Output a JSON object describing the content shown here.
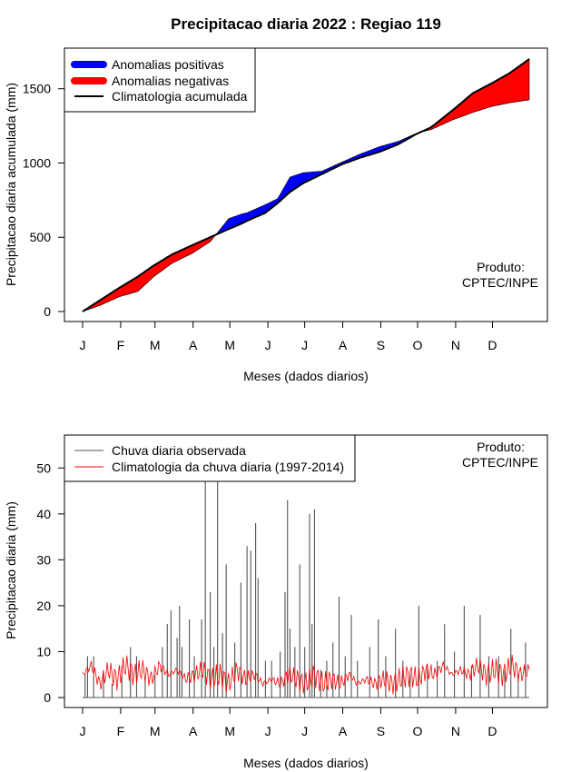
{
  "page_title": "Precipitacao diaria 2022 : Regiao 119",
  "months": [
    "J",
    "F",
    "M",
    "A",
    "M",
    "J",
    "J",
    "A",
    "S",
    "O",
    "N",
    "D"
  ],
  "colors": {
    "positive": "#0000ff",
    "negative": "#ff0000",
    "observed": "#555555",
    "climatology_daily": "#ff0000",
    "axis": "#000000"
  },
  "chart_data": [
    {
      "type": "area",
      "title": "Precipitacao diaria 2022 : Regiao 119",
      "xlabel": "Meses (dados diarios)",
      "ylabel": "Precipitacao diaria acumulada (mm)",
      "xlim": [
        1,
        365
      ],
      "ylim": [
        0,
        1700
      ],
      "yticks": [
        0,
        500,
        1000,
        1500
      ],
      "credit_line1": "Produto:",
      "credit_line2": "CPTEC/INPE",
      "legend": [
        {
          "label": "Anomalias positivas",
          "style": "positive"
        },
        {
          "label": "Anomalias negativas",
          "style": "negative"
        },
        {
          "label": "Climatologia acumulada",
          "style": "line"
        }
      ],
      "x_day": [
        1,
        15,
        31,
        46,
        59,
        74,
        90,
        105,
        120,
        130,
        135,
        150,
        160,
        170,
        181,
        196,
        212,
        227,
        243,
        258,
        273,
        285,
        304,
        319,
        334,
        349,
        365
      ],
      "climatology_cumulative": [
        0,
        75,
        160,
        235,
        310,
        385,
        445,
        500,
        555,
        590,
        610,
        665,
        730,
        805,
        865,
        925,
        990,
        1035,
        1075,
        1125,
        1195,
        1240,
        1365,
        1470,
        1535,
        1605,
        1700
      ],
      "observed_cumulative": [
        0,
        40,
        100,
        135,
        235,
        325,
        390,
        470,
        625,
        655,
        665,
        720,
        760,
        905,
        935,
        945,
        1005,
        1060,
        1110,
        1145,
        1200,
        1225,
        1295,
        1340,
        1380,
        1405,
        1425
      ]
    },
    {
      "type": "line",
      "xlabel": "Meses (dados diarios)",
      "ylabel": "Precipitacao diaria (mm)",
      "xlim": [
        1,
        365
      ],
      "ylim": [
        0,
        55
      ],
      "yticks": [
        0,
        10,
        20,
        30,
        40,
        50
      ],
      "credit_line1": "Produto:",
      "credit_line2": "CPTEC/INPE",
      "legend": [
        {
          "label": "Chuva diaria observada",
          "style": "observed"
        },
        {
          "label": "Climatologia da chuva diaria (1997-2014)",
          "style": "climatology_daily"
        }
      ],
      "observed_peaks": [
        {
          "day": 3,
          "value": 5
        },
        {
          "day": 5,
          "value": 9
        },
        {
          "day": 10,
          "value": 9
        },
        {
          "day": 18,
          "value": 6
        },
        {
          "day": 25,
          "value": 3
        },
        {
          "day": 33,
          "value": 7
        },
        {
          "day": 40,
          "value": 11
        },
        {
          "day": 45,
          "value": 9
        },
        {
          "day": 52,
          "value": 4
        },
        {
          "day": 60,
          "value": 5
        },
        {
          "day": 66,
          "value": 11
        },
        {
          "day": 70,
          "value": 16
        },
        {
          "day": 73,
          "value": 19
        },
        {
          "day": 78,
          "value": 13
        },
        {
          "day": 80,
          "value": 20
        },
        {
          "day": 82,
          "value": 11
        },
        {
          "day": 88,
          "value": 17
        },
        {
          "day": 92,
          "value": 9
        },
        {
          "day": 98,
          "value": 17
        },
        {
          "day": 101,
          "value": 47
        },
        {
          "day": 105,
          "value": 23
        },
        {
          "day": 108,
          "value": 11
        },
        {
          "day": 111,
          "value": 47
        },
        {
          "day": 115,
          "value": 14
        },
        {
          "day": 118,
          "value": 29
        },
        {
          "day": 125,
          "value": 12
        },
        {
          "day": 130,
          "value": 25
        },
        {
          "day": 135,
          "value": 33
        },
        {
          "day": 138,
          "value": 32
        },
        {
          "day": 142,
          "value": 38
        },
        {
          "day": 144,
          "value": 26
        },
        {
          "day": 150,
          "value": 8
        },
        {
          "day": 155,
          "value": 8
        },
        {
          "day": 162,
          "value": 10
        },
        {
          "day": 166,
          "value": 23
        },
        {
          "day": 168,
          "value": 43
        },
        {
          "day": 170,
          "value": 15
        },
        {
          "day": 174,
          "value": 11
        },
        {
          "day": 178,
          "value": 29
        },
        {
          "day": 182,
          "value": 11
        },
        {
          "day": 186,
          "value": 40
        },
        {
          "day": 188,
          "value": 16
        },
        {
          "day": 190,
          "value": 41
        },
        {
          "day": 195,
          "value": 6
        },
        {
          "day": 200,
          "value": 8
        },
        {
          "day": 205,
          "value": 12
        },
        {
          "day": 210,
          "value": 22
        },
        {
          "day": 215,
          "value": 9
        },
        {
          "day": 220,
          "value": 18
        },
        {
          "day": 225,
          "value": 8
        },
        {
          "day": 235,
          "value": 11
        },
        {
          "day": 242,
          "value": 17
        },
        {
          "day": 248,
          "value": 9
        },
        {
          "day": 256,
          "value": 15
        },
        {
          "day": 262,
          "value": 8
        },
        {
          "day": 268,
          "value": 5
        },
        {
          "day": 275,
          "value": 20
        },
        {
          "day": 282,
          "value": 7
        },
        {
          "day": 290,
          "value": 8
        },
        {
          "day": 296,
          "value": 16
        },
        {
          "day": 304,
          "value": 10
        },
        {
          "day": 312,
          "value": 20
        },
        {
          "day": 318,
          "value": 7
        },
        {
          "day": 325,
          "value": 18
        },
        {
          "day": 332,
          "value": 9
        },
        {
          "day": 340,
          "value": 9
        },
        {
          "day": 345,
          "value": 6
        },
        {
          "day": 350,
          "value": 15
        },
        {
          "day": 356,
          "value": 5
        },
        {
          "day": 362,
          "value": 12
        }
      ],
      "climatology_daily": [
        {
          "day": 1,
          "value": 5
        },
        {
          "day": 8,
          "value": 7
        },
        {
          "day": 15,
          "value": 3
        },
        {
          "day": 22,
          "value": 6
        },
        {
          "day": 29,
          "value": 4
        },
        {
          "day": 36,
          "value": 7
        },
        {
          "day": 43,
          "value": 5
        },
        {
          "day": 50,
          "value": 6
        },
        {
          "day": 57,
          "value": 4
        },
        {
          "day": 64,
          "value": 7
        },
        {
          "day": 71,
          "value": 5
        },
        {
          "day": 78,
          "value": 6
        },
        {
          "day": 85,
          "value": 4
        },
        {
          "day": 92,
          "value": 5
        },
        {
          "day": 99,
          "value": 6
        },
        {
          "day": 106,
          "value": 4
        },
        {
          "day": 113,
          "value": 5
        },
        {
          "day": 120,
          "value": 3
        },
        {
          "day": 127,
          "value": 6
        },
        {
          "day": 134,
          "value": 4
        },
        {
          "day": 141,
          "value": 5
        },
        {
          "day": 148,
          "value": 3
        },
        {
          "day": 155,
          "value": 4
        },
        {
          "day": 162,
          "value": 3
        },
        {
          "day": 169,
          "value": 5
        },
        {
          "day": 176,
          "value": 4
        },
        {
          "day": 183,
          "value": 3
        },
        {
          "day": 190,
          "value": 5
        },
        {
          "day": 197,
          "value": 3
        },
        {
          "day": 204,
          "value": 4
        },
        {
          "day": 211,
          "value": 3
        },
        {
          "day": 218,
          "value": 5
        },
        {
          "day": 225,
          "value": 3
        },
        {
          "day": 232,
          "value": 4
        },
        {
          "day": 239,
          "value": 3
        },
        {
          "day": 246,
          "value": 4
        },
        {
          "day": 253,
          "value": 3
        },
        {
          "day": 260,
          "value": 4
        },
        {
          "day": 267,
          "value": 5
        },
        {
          "day": 274,
          "value": 4
        },
        {
          "day": 281,
          "value": 6
        },
        {
          "day": 288,
          "value": 5
        },
        {
          "day": 295,
          "value": 7
        },
        {
          "day": 302,
          "value": 5
        },
        {
          "day": 309,
          "value": 6
        },
        {
          "day": 316,
          "value": 5
        },
        {
          "day": 323,
          "value": 7
        },
        {
          "day": 330,
          "value": 5
        },
        {
          "day": 337,
          "value": 6
        },
        {
          "day": 344,
          "value": 5
        },
        {
          "day": 351,
          "value": 7
        },
        {
          "day": 358,
          "value": 5
        },
        {
          "day": 365,
          "value": 6
        }
      ]
    }
  ]
}
